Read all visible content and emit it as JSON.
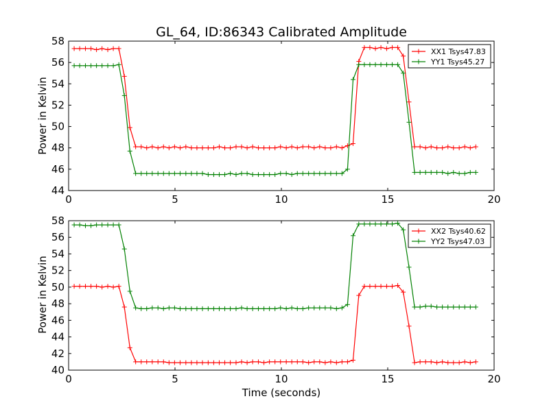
{
  "chart_data": [
    {
      "type": "line",
      "title": "GL_64, ID:86343 Calibrated Amplitude",
      "xlabel": "",
      "ylabel": "Power in Kelvin",
      "xlim": [
        0,
        20
      ],
      "ylim": [
        44,
        58
      ],
      "xticks": [
        "0",
        "5",
        "10",
        "15",
        "20"
      ],
      "yticks": [
        "44",
        "46",
        "48",
        "50",
        "52",
        "54",
        "56",
        "58"
      ],
      "legend_position": "top-right",
      "grid": false,
      "series": [
        {
          "name": "XX1 Tsys47.83",
          "color": "#ff0000",
          "x": [
            0.26,
            0.52,
            0.79,
            1.05,
            1.31,
            1.57,
            1.84,
            2.1,
            2.36,
            2.62,
            2.88,
            3.15,
            3.41,
            3.67,
            3.93,
            4.2,
            4.46,
            4.72,
            4.98,
            5.24,
            5.51,
            5.77,
            6.03,
            6.29,
            6.56,
            6.82,
            7.08,
            7.34,
            7.6,
            7.87,
            8.13,
            8.39,
            8.65,
            8.92,
            9.18,
            9.44,
            9.7,
            9.96,
            10.23,
            10.49,
            10.75,
            11.01,
            11.28,
            11.54,
            11.8,
            12.06,
            12.32,
            12.59,
            12.85,
            13.11,
            13.37,
            13.64,
            13.9,
            14.16,
            14.42,
            14.68,
            14.95,
            15.21,
            15.47,
            15.73,
            16.0,
            16.26,
            16.52,
            16.78,
            17.04,
            17.31,
            17.57,
            17.83,
            18.09,
            18.36,
            18.62,
            18.88,
            19.14
          ],
          "y": [
            57.3,
            57.3,
            57.3,
            57.3,
            57.2,
            57.3,
            57.2,
            57.3,
            57.3,
            54.7,
            49.9,
            48.1,
            48.1,
            48.0,
            48.1,
            48.0,
            48.1,
            48.0,
            48.1,
            48.0,
            48.1,
            48.0,
            48.0,
            48.0,
            48.0,
            48.0,
            48.1,
            48.0,
            48.0,
            48.1,
            48.1,
            48.0,
            48.1,
            48.0,
            48.0,
            48.0,
            48.0,
            48.1,
            48.0,
            48.1,
            48.0,
            48.1,
            48.1,
            48.0,
            48.1,
            48.0,
            48.0,
            48.1,
            48.0,
            48.2,
            48.4,
            56.1,
            57.4,
            57.4,
            57.3,
            57.4,
            57.3,
            57.4,
            57.4,
            56.6,
            52.3,
            48.1,
            48.1,
            48.0,
            48.1,
            48.0,
            48.0,
            48.1,
            48.0,
            48.0,
            48.1,
            48.0,
            48.1
          ]
        },
        {
          "name": "YY1 Tsys45.27",
          "color": "#008000",
          "x": [
            0.26,
            0.52,
            0.79,
            1.05,
            1.31,
            1.57,
            1.84,
            2.1,
            2.36,
            2.62,
            2.88,
            3.15,
            3.41,
            3.67,
            3.93,
            4.2,
            4.46,
            4.72,
            4.98,
            5.24,
            5.51,
            5.77,
            6.03,
            6.29,
            6.56,
            6.82,
            7.08,
            7.34,
            7.6,
            7.87,
            8.13,
            8.39,
            8.65,
            8.92,
            9.18,
            9.44,
            9.7,
            9.96,
            10.23,
            10.49,
            10.75,
            11.01,
            11.28,
            11.54,
            11.8,
            12.06,
            12.32,
            12.59,
            12.85,
            13.11,
            13.37,
            13.64,
            13.9,
            14.16,
            14.42,
            14.68,
            14.95,
            15.21,
            15.47,
            15.73,
            16.0,
            16.26,
            16.52,
            16.78,
            17.04,
            17.31,
            17.57,
            17.83,
            18.09,
            18.36,
            18.62,
            18.88,
            19.14
          ],
          "y": [
            55.7,
            55.7,
            55.7,
            55.7,
            55.7,
            55.7,
            55.7,
            55.7,
            55.8,
            52.9,
            47.7,
            45.6,
            45.6,
            45.6,
            45.6,
            45.6,
            45.6,
            45.6,
            45.6,
            45.6,
            45.6,
            45.6,
            45.6,
            45.6,
            45.5,
            45.5,
            45.5,
            45.5,
            45.6,
            45.5,
            45.6,
            45.6,
            45.5,
            45.5,
            45.5,
            45.5,
            45.5,
            45.6,
            45.6,
            45.5,
            45.6,
            45.6,
            45.6,
            45.6,
            45.6,
            45.6,
            45.6,
            45.6,
            45.6,
            46.0,
            54.4,
            55.8,
            55.8,
            55.8,
            55.8,
            55.8,
            55.8,
            55.8,
            55.8,
            55.0,
            50.4,
            45.7,
            45.7,
            45.7,
            45.7,
            45.7,
            45.7,
            45.6,
            45.7,
            45.6,
            45.6,
            45.7,
            45.7
          ]
        }
      ]
    },
    {
      "type": "line",
      "title": "",
      "xlabel": "Time (seconds)",
      "ylabel": "Power in Kelvin",
      "xlim": [
        0,
        20
      ],
      "ylim": [
        40,
        58
      ],
      "xticks": [
        "0",
        "5",
        "10",
        "15",
        "20"
      ],
      "yticks": [
        "40",
        "42",
        "44",
        "46",
        "48",
        "50",
        "52",
        "54",
        "56",
        "58"
      ],
      "legend_position": "top-right",
      "grid": false,
      "series": [
        {
          "name": "XX2 Tsys40.62",
          "color": "#ff0000",
          "x": [
            0.26,
            0.52,
            0.79,
            1.05,
            1.31,
            1.57,
            1.84,
            2.1,
            2.36,
            2.62,
            2.88,
            3.15,
            3.41,
            3.67,
            3.93,
            4.2,
            4.46,
            4.72,
            4.98,
            5.24,
            5.51,
            5.77,
            6.03,
            6.29,
            6.56,
            6.82,
            7.08,
            7.34,
            7.6,
            7.87,
            8.13,
            8.39,
            8.65,
            8.92,
            9.18,
            9.44,
            9.7,
            9.96,
            10.23,
            10.49,
            10.75,
            11.01,
            11.28,
            11.54,
            11.8,
            12.06,
            12.32,
            12.59,
            12.85,
            13.11,
            13.37,
            13.64,
            13.9,
            14.16,
            14.42,
            14.68,
            14.95,
            15.21,
            15.47,
            15.73,
            16.0,
            16.26,
            16.52,
            16.78,
            17.04,
            17.31,
            17.57,
            17.83,
            18.09,
            18.36,
            18.62,
            18.88,
            19.14
          ],
          "y": [
            50.1,
            50.1,
            50.1,
            50.1,
            50.1,
            50.0,
            50.1,
            50.0,
            50.1,
            47.6,
            42.7,
            41.0,
            41.0,
            41.0,
            41.0,
            41.0,
            41.0,
            40.9,
            40.9,
            40.9,
            40.9,
            40.9,
            40.9,
            40.9,
            40.9,
            40.9,
            40.9,
            40.9,
            40.9,
            40.9,
            41.0,
            40.9,
            41.0,
            41.0,
            40.9,
            41.0,
            41.0,
            41.0,
            41.0,
            41.0,
            41.0,
            41.0,
            40.9,
            41.0,
            41.0,
            40.9,
            41.0,
            40.9,
            41.0,
            41.0,
            41.2,
            49.0,
            50.1,
            50.1,
            50.1,
            50.1,
            50.1,
            50.1,
            50.2,
            49.4,
            45.3,
            40.9,
            41.0,
            41.0,
            41.0,
            40.9,
            41.0,
            40.9,
            40.9,
            40.9,
            41.0,
            40.9,
            41.0
          ]
        },
        {
          "name": "YY2 Tsys47.03",
          "color": "#008000",
          "x": [
            0.26,
            0.52,
            0.79,
            1.05,
            1.31,
            1.57,
            1.84,
            2.1,
            2.36,
            2.62,
            2.88,
            3.15,
            3.41,
            3.67,
            3.93,
            4.2,
            4.46,
            4.72,
            4.98,
            5.24,
            5.51,
            5.77,
            6.03,
            6.29,
            6.56,
            6.82,
            7.08,
            7.34,
            7.6,
            7.87,
            8.13,
            8.39,
            8.65,
            8.92,
            9.18,
            9.44,
            9.7,
            9.96,
            10.23,
            10.49,
            10.75,
            11.01,
            11.28,
            11.54,
            11.8,
            12.06,
            12.32,
            12.59,
            12.85,
            13.11,
            13.37,
            13.64,
            13.9,
            14.16,
            14.42,
            14.68,
            14.95,
            15.21,
            15.47,
            15.73,
            16.0,
            16.26,
            16.52,
            16.78,
            17.04,
            17.31,
            17.57,
            17.83,
            18.09,
            18.36,
            18.62,
            18.88,
            19.14
          ],
          "y": [
            57.5,
            57.5,
            57.4,
            57.4,
            57.5,
            57.5,
            57.5,
            57.5,
            57.5,
            54.6,
            49.5,
            47.5,
            47.4,
            47.4,
            47.5,
            47.5,
            47.4,
            47.5,
            47.5,
            47.4,
            47.4,
            47.4,
            47.4,
            47.4,
            47.4,
            47.4,
            47.4,
            47.4,
            47.4,
            47.4,
            47.5,
            47.4,
            47.4,
            47.4,
            47.4,
            47.4,
            47.4,
            47.5,
            47.4,
            47.5,
            47.4,
            47.4,
            47.5,
            47.5,
            47.5,
            47.5,
            47.5,
            47.4,
            47.5,
            47.9,
            56.2,
            57.6,
            57.6,
            57.6,
            57.6,
            57.6,
            57.6,
            57.6,
            57.7,
            56.9,
            52.4,
            47.6,
            47.6,
            47.7,
            47.7,
            47.6,
            47.6,
            47.6,
            47.6,
            47.6,
            47.6,
            47.6,
            47.6
          ]
        }
      ]
    }
  ]
}
